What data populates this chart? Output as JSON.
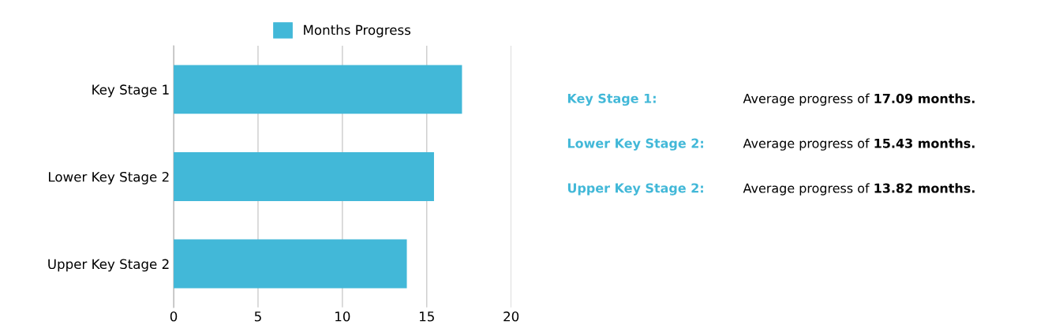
{
  "chart_data": [
    {
      "type": "bar",
      "orientation": "horizontal",
      "categories": [
        "Key Stage 1",
        "Lower Key Stage 2",
        "Upper Key Stage 2"
      ],
      "series": [
        {
          "name": "Months Progress",
          "color": "#42b8d8",
          "values": [
            17.09,
            15.43,
            13.82
          ]
        }
      ],
      "xlim": [
        0,
        20
      ],
      "xticks": [
        0,
        5,
        10,
        15,
        20
      ],
      "grid": "x",
      "legend": "top"
    },
    {
      "type": "other",
      "color": "#42b8d8",
      "annotations": [
        "Key Stage 1:",
        "Average progress of",
        "17.09 months.",
        "Lower Key Stage 2:",
        "Average progress of",
        "15.43 months.",
        "Upper Key Stage 2:",
        "Average progress of",
        "13.82 months."
      ]
    }
  ]
}
